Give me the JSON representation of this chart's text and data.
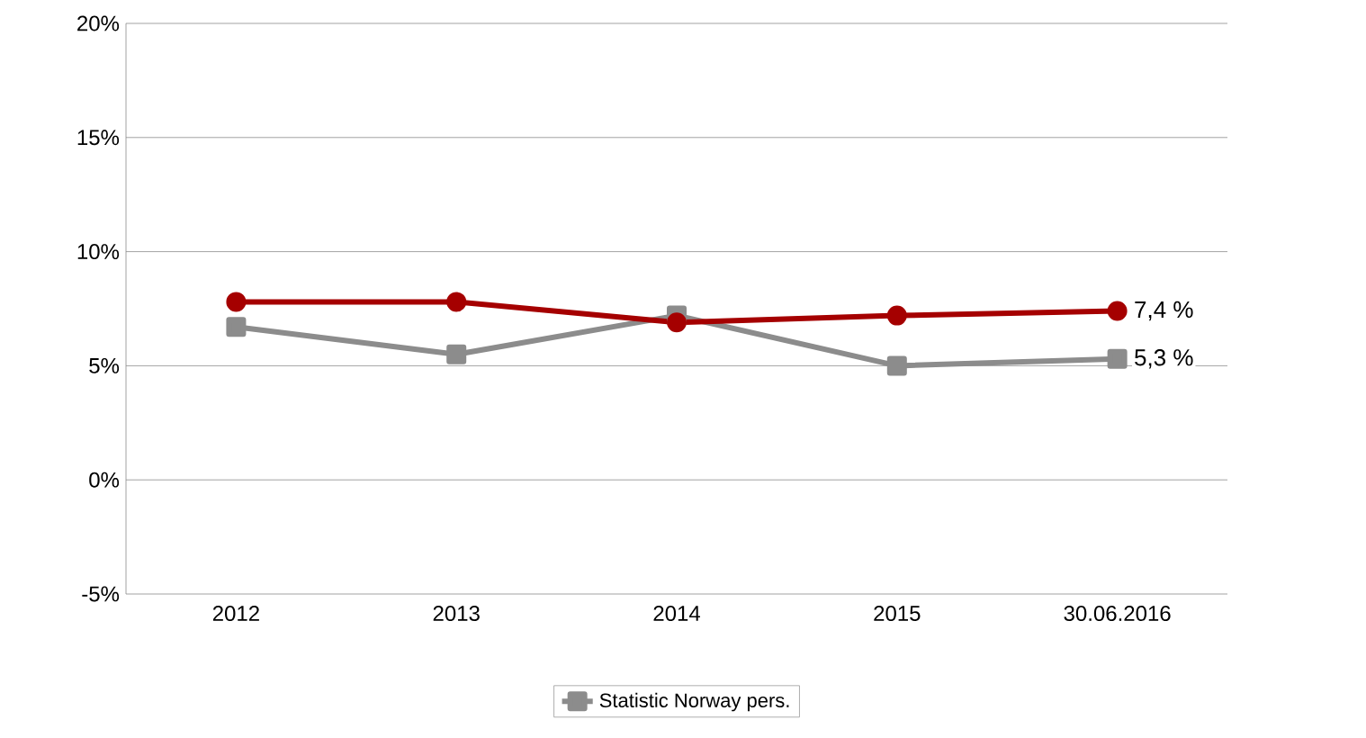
{
  "chart_data": {
    "type": "line",
    "categories": [
      "2012",
      "2013",
      "2014",
      "2015",
      "30.06.2016"
    ],
    "series": [
      {
        "color": "#a50000",
        "marker": "circle",
        "values": [
          7.8,
          7.8,
          6.9,
          7.2,
          7.4
        ],
        "value_labels": [
          null,
          null,
          null,
          null,
          "7,4 %"
        ]
      },
      {
        "name": "Statistic Norway pers.",
        "color": "#8c8c8c",
        "marker": "square",
        "values": [
          6.7,
          5.5,
          7.2,
          5.0,
          5.3
        ],
        "value_labels": [
          null,
          null,
          null,
          null,
          "5,3 %"
        ]
      }
    ],
    "ylim": [
      -5,
      20
    ],
    "yticks": [
      {
        "value": -5,
        "label": "-5%"
      },
      {
        "value": 0,
        "label": "0%"
      },
      {
        "value": 5,
        "label": "5%"
      },
      {
        "value": 10,
        "label": "10%"
      },
      {
        "value": 15,
        "label": "15%"
      },
      {
        "value": 20,
        "label": "20%"
      }
    ],
    "grid": "y",
    "legend": "bottom",
    "line_style": "solid"
  }
}
